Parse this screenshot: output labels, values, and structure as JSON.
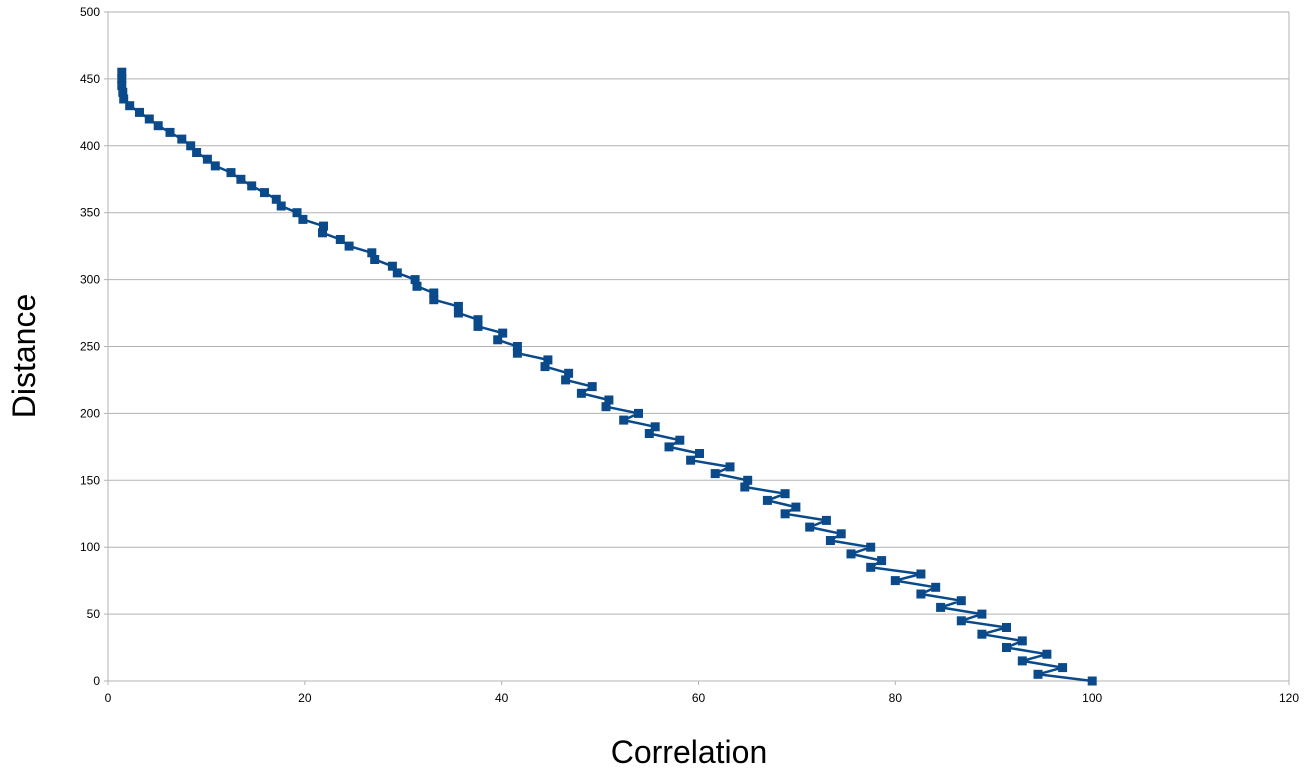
{
  "chart_data": {
    "type": "line",
    "title": "",
    "xlabel": "Correlation",
    "ylabel": "Distance",
    "xlim": [
      0,
      120
    ],
    "ylim": [
      0,
      500
    ],
    "xticks": [
      0,
      20,
      40,
      60,
      80,
      100,
      120
    ],
    "yticks": [
      0,
      50,
      100,
      150,
      200,
      250,
      300,
      350,
      400,
      450,
      500
    ],
    "grid": "horizontal",
    "legend": "none",
    "series_color": "#0a4a8a",
    "marker": "square",
    "series": [
      {
        "points": [
          [
            100.0,
            0
          ],
          [
            94.5,
            5
          ],
          [
            97.0,
            10
          ],
          [
            92.9,
            15
          ],
          [
            95.4,
            20
          ],
          [
            91.3,
            25
          ],
          [
            92.9,
            30
          ],
          [
            88.8,
            35
          ],
          [
            91.3,
            40
          ],
          [
            86.7,
            45
          ],
          [
            88.8,
            50
          ],
          [
            84.6,
            55
          ],
          [
            86.7,
            60
          ],
          [
            82.6,
            65
          ],
          [
            84.1,
            70
          ],
          [
            80.0,
            75
          ],
          [
            82.6,
            80
          ],
          [
            77.5,
            85
          ],
          [
            78.6,
            90
          ],
          [
            75.5,
            95
          ],
          [
            77.5,
            100
          ],
          [
            73.4,
            105
          ],
          [
            74.5,
            110
          ],
          [
            71.3,
            115
          ],
          [
            73.0,
            120
          ],
          [
            68.8,
            125
          ],
          [
            69.9,
            130
          ],
          [
            67.0,
            135
          ],
          [
            68.8,
            140
          ],
          [
            64.7,
            145
          ],
          [
            65.0,
            150
          ],
          [
            61.7,
            155
          ],
          [
            63.2,
            160
          ],
          [
            59.2,
            165
          ],
          [
            60.1,
            170
          ],
          [
            57.0,
            175
          ],
          [
            58.1,
            180
          ],
          [
            55.0,
            185
          ],
          [
            55.6,
            190
          ],
          [
            52.4,
            195
          ],
          [
            53.9,
            200
          ],
          [
            50.6,
            205
          ],
          [
            50.9,
            210
          ],
          [
            48.1,
            215
          ],
          [
            49.2,
            220
          ],
          [
            46.5,
            225
          ],
          [
            46.8,
            230
          ],
          [
            44.4,
            235
          ],
          [
            44.7,
            240
          ],
          [
            41.6,
            245
          ],
          [
            41.6,
            250
          ],
          [
            39.6,
            255
          ],
          [
            40.1,
            260
          ],
          [
            37.6,
            265
          ],
          [
            37.6,
            270
          ],
          [
            35.6,
            275
          ],
          [
            35.6,
            280
          ],
          [
            33.1,
            285
          ],
          [
            33.1,
            290
          ],
          [
            31.4,
            295
          ],
          [
            31.2,
            300
          ],
          [
            29.4,
            305
          ],
          [
            28.9,
            310
          ],
          [
            27.1,
            315
          ],
          [
            26.8,
            320
          ],
          [
            24.5,
            325
          ],
          [
            23.6,
            330
          ],
          [
            21.8,
            335
          ],
          [
            21.9,
            340
          ],
          [
            19.8,
            345
          ],
          [
            19.2,
            350
          ],
          [
            17.6,
            355
          ],
          [
            17.1,
            360
          ],
          [
            15.9,
            365
          ],
          [
            14.6,
            370
          ],
          [
            13.5,
            375
          ],
          [
            12.5,
            380
          ],
          [
            10.9,
            385
          ],
          [
            10.1,
            390
          ],
          [
            9.0,
            395
          ],
          [
            8.4,
            400
          ],
          [
            7.5,
            405
          ],
          [
            6.3,
            410
          ],
          [
            5.1,
            415
          ],
          [
            4.2,
            420
          ],
          [
            3.2,
            425
          ],
          [
            2.2,
            430
          ],
          [
            1.6,
            435
          ],
          [
            1.5,
            440
          ],
          [
            1.4,
            445
          ],
          [
            1.4,
            450
          ],
          [
            1.4,
            455
          ]
        ]
      }
    ]
  }
}
